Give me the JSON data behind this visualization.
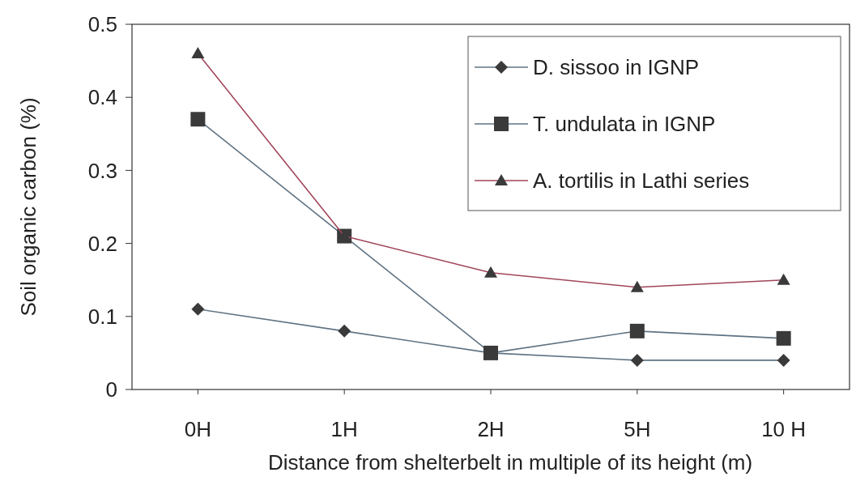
{
  "chart_data": {
    "type": "line",
    "xlabel": "Distance from shelterbelt in multiple of its height (m)",
    "ylabel": "Soil organic  carbon (%)",
    "categories": [
      "0H",
      "1H",
      "2H",
      "5H",
      "10 H"
    ],
    "series": [
      {
        "name": "D. sissoo in IGNP",
        "color": "#5f7383",
        "marker": "diamond",
        "values": [
          0.11,
          0.08,
          0.05,
          0.04,
          0.04
        ]
      },
      {
        "name": "T. undulata in IGNP",
        "color": "#5f7383",
        "marker": "square",
        "values": [
          0.37,
          0.21,
          0.05,
          0.08,
          0.07
        ]
      },
      {
        "name": "A. tortilis in Lathi series",
        "color": "#a0465a",
        "marker": "triangle",
        "values": [
          0.46,
          0.21,
          0.16,
          0.14,
          0.15
        ]
      }
    ],
    "ylim": [
      0,
      0.5
    ],
    "yticks": [
      0,
      0.1,
      0.2,
      0.3,
      0.4,
      0.5
    ],
    "legend": "top right",
    "grid": false,
    "line_style": "solid"
  }
}
